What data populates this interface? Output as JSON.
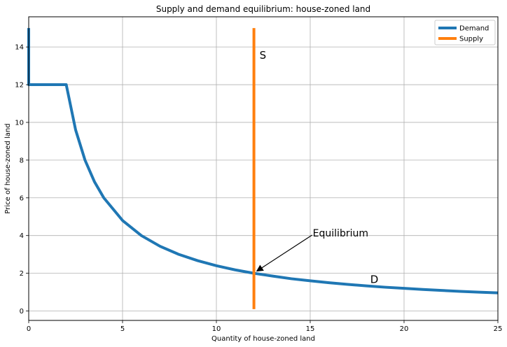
{
  "chart_data": {
    "type": "line",
    "title": "Supply and demand equilibrium: house-zoned land",
    "xlabel": "Quantity of house-zoned land",
    "ylabel": "Price of house-zoned land",
    "xlim": [
      0,
      25
    ],
    "ylim": [
      -0.5,
      15.6
    ],
    "xticks": [
      0,
      5,
      10,
      15,
      20,
      25
    ],
    "yticks": [
      0,
      2,
      4,
      6,
      8,
      10,
      12,
      14
    ],
    "grid": true,
    "legend": {
      "placement": "top-right"
    },
    "series": [
      {
        "name": "Demand",
        "color": "#1f77b4",
        "points": [
          [
            0,
            15
          ],
          [
            0,
            12
          ],
          [
            2,
            12
          ],
          [
            2.5,
            9.6
          ],
          [
            3,
            8.0
          ],
          [
            3.5,
            6.86
          ],
          [
            4,
            6.0
          ],
          [
            5,
            4.8
          ],
          [
            6,
            4.0
          ],
          [
            7,
            3.43
          ],
          [
            8,
            3.0
          ],
          [
            9,
            2.67
          ],
          [
            10,
            2.4
          ],
          [
            11,
            2.18
          ],
          [
            12,
            2.0
          ],
          [
            13,
            1.85
          ],
          [
            14,
            1.71
          ],
          [
            15,
            1.6
          ],
          [
            16,
            1.5
          ],
          [
            17,
            1.41
          ],
          [
            18,
            1.33
          ],
          [
            19,
            1.26
          ],
          [
            20,
            1.2
          ],
          [
            21,
            1.14
          ],
          [
            22,
            1.09
          ],
          [
            23,
            1.04
          ],
          [
            24,
            1.0
          ],
          [
            25,
            0.96
          ]
        ]
      },
      {
        "name": "Supply",
        "color": "#ff7f0e",
        "points": [
          [
            12,
            0.1
          ],
          [
            12,
            15
          ]
        ]
      }
    ],
    "annotations": [
      {
        "text": "S",
        "x": 12.3,
        "y": 13.6,
        "kind": "label"
      },
      {
        "text": "D",
        "x": 18.2,
        "y": 1.7,
        "kind": "label"
      },
      {
        "text": "Equilibrium",
        "x": 15.1,
        "y": 4.1,
        "kind": "arrow",
        "target": [
          12,
          2
        ]
      }
    ]
  }
}
